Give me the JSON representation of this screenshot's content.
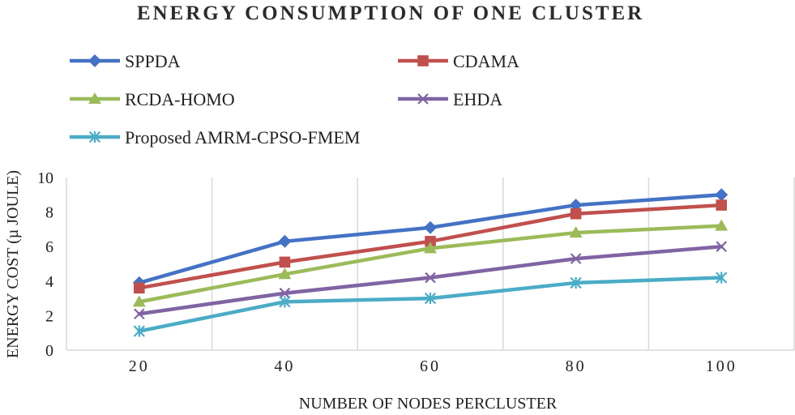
{
  "chart_data": {
    "type": "line",
    "title": "ENERGY CONSUMPTION OF ONE CLUSTER",
    "xlabel": "NUMBER OF NODES PERCLUSTER",
    "ylabel": "ENERGY COST (µ JOULE)",
    "categories": [
      "20",
      "40",
      "60",
      "80",
      "100"
    ],
    "ylim": [
      0,
      10
    ],
    "yticks": [
      0,
      2,
      4,
      6,
      8,
      10
    ],
    "grid": "vertical",
    "legend_position": "top",
    "series": [
      {
        "name": "SPPDA",
        "color": "#4472c4",
        "marker": "diamond",
        "values": [
          3.9,
          6.3,
          7.1,
          8.4,
          9.0
        ]
      },
      {
        "name": "CDAMA",
        "color": "#c0504d",
        "marker": "square",
        "values": [
          3.6,
          5.1,
          6.3,
          7.9,
          8.4
        ]
      },
      {
        "name": "RCDA-HOMO",
        "color": "#9bbb59",
        "marker": "triangle",
        "values": [
          2.8,
          4.4,
          5.9,
          6.8,
          7.2
        ]
      },
      {
        "name": "EHDA",
        "color": "#8064a2",
        "marker": "x",
        "values": [
          2.1,
          3.3,
          4.2,
          5.3,
          6.0
        ]
      },
      {
        "name": "Proposed AMRM-CPSO-FMEM",
        "color": "#4bacc6",
        "marker": "star",
        "values": [
          1.1,
          2.8,
          3.0,
          3.9,
          4.2
        ]
      }
    ]
  }
}
